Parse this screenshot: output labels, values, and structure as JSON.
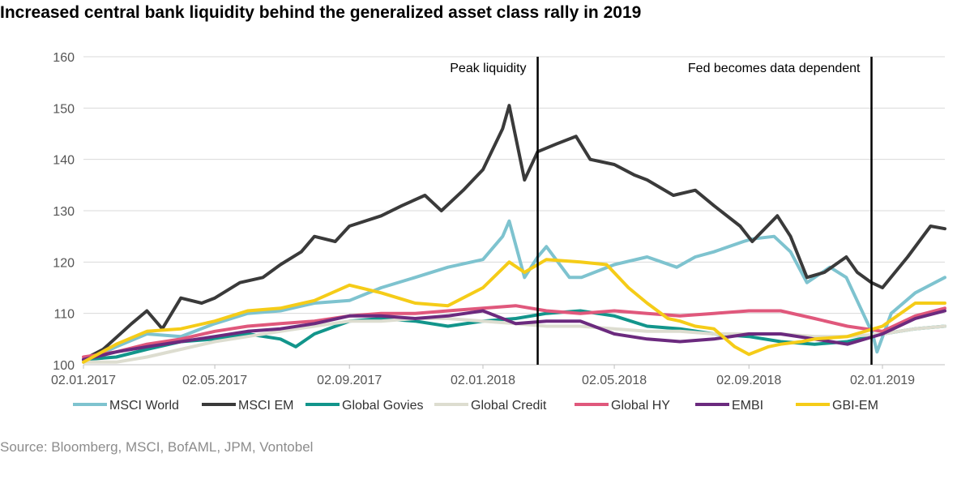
{
  "title": "Increased central bank liquidity behind the generalized asset class rally in 2019",
  "source": "Source: Bloomberg, MSCI, BofAML, JPM, Vontobel",
  "chart_data": {
    "type": "line",
    "x_start": "2017-01-02",
    "x_end": "2019-02-28",
    "x_ticks": [
      "02.01.2017",
      "02.05.2017",
      "02.09.2017",
      "02.01.2018",
      "02.05.2018",
      "02.09.2018",
      "02.01.2019"
    ],
    "x_tick_dates": [
      "2017-01-02",
      "2017-05-02",
      "2017-09-02",
      "2018-01-02",
      "2018-05-02",
      "2018-09-02",
      "2019-01-02"
    ],
    "ylim": [
      100,
      160
    ],
    "y_ticks": [
      "100",
      "110",
      "120",
      "130",
      "140",
      "150",
      "160"
    ],
    "grid": "horizontal",
    "legend_position": "bottom",
    "annotations": [
      {
        "label": "Peak liquidity",
        "date": "2018-02-21"
      },
      {
        "label": "Fed becomes data dependent",
        "date": "2018-12-23"
      }
    ],
    "series": [
      {
        "name": "MSCI World",
        "color": "#7ec3cf",
        "width": 4,
        "points": [
          [
            "2017-01-02",
            100.5
          ],
          [
            "2017-02-01",
            103.5
          ],
          [
            "2017-03-01",
            106
          ],
          [
            "2017-04-01",
            105.5
          ],
          [
            "2017-05-02",
            108
          ],
          [
            "2017-06-01",
            110
          ],
          [
            "2017-07-01",
            110.5
          ],
          [
            "2017-08-01",
            112
          ],
          [
            "2017-09-02",
            112.5
          ],
          [
            "2017-10-01",
            115
          ],
          [
            "2017-11-01",
            117
          ],
          [
            "2017-12-01",
            119
          ],
          [
            "2018-01-02",
            120.5
          ],
          [
            "2018-01-20",
            125
          ],
          [
            "2018-01-26",
            128
          ],
          [
            "2018-02-09",
            117
          ],
          [
            "2018-02-21",
            121
          ],
          [
            "2018-03-01",
            123
          ],
          [
            "2018-03-22",
            117
          ],
          [
            "2018-04-02",
            117
          ],
          [
            "2018-05-02",
            119.5
          ],
          [
            "2018-06-01",
            121
          ],
          [
            "2018-06-28",
            119
          ],
          [
            "2018-07-15",
            121
          ],
          [
            "2018-08-01",
            122
          ],
          [
            "2018-08-28",
            124
          ],
          [
            "2018-09-05",
            124.5
          ],
          [
            "2018-09-25",
            125
          ],
          [
            "2018-10-10",
            122
          ],
          [
            "2018-10-25",
            116
          ],
          [
            "2018-11-15",
            119
          ],
          [
            "2018-11-30",
            117
          ],
          [
            "2018-12-24",
            106
          ],
          [
            "2018-12-28",
            102.5
          ],
          [
            "2019-01-10",
            110
          ],
          [
            "2019-02-01",
            114
          ],
          [
            "2019-02-28",
            117
          ]
        ]
      },
      {
        "name": "MSCI EM",
        "color": "#3a3a3a",
        "width": 4,
        "points": [
          [
            "2017-01-02",
            101
          ],
          [
            "2017-01-20",
            103
          ],
          [
            "2017-02-15",
            108
          ],
          [
            "2017-03-01",
            110.5
          ],
          [
            "2017-03-15",
            107
          ],
          [
            "2017-04-01",
            113
          ],
          [
            "2017-04-20",
            112
          ],
          [
            "2017-05-02",
            113
          ],
          [
            "2017-05-25",
            116
          ],
          [
            "2017-06-15",
            117
          ],
          [
            "2017-07-01",
            119.5
          ],
          [
            "2017-07-20",
            122
          ],
          [
            "2017-08-01",
            125
          ],
          [
            "2017-08-20",
            124
          ],
          [
            "2017-09-02",
            127
          ],
          [
            "2017-10-01",
            129
          ],
          [
            "2017-10-20",
            131
          ],
          [
            "2017-11-10",
            133
          ],
          [
            "2017-11-25",
            130
          ],
          [
            "2017-12-15",
            134
          ],
          [
            "2018-01-02",
            138
          ],
          [
            "2018-01-20",
            146
          ],
          [
            "2018-01-26",
            150.5
          ],
          [
            "2018-02-09",
            136
          ],
          [
            "2018-02-21",
            141.5
          ],
          [
            "2018-03-10",
            143
          ],
          [
            "2018-03-28",
            144.5
          ],
          [
            "2018-04-10",
            140
          ],
          [
            "2018-05-02",
            139
          ],
          [
            "2018-05-20",
            137
          ],
          [
            "2018-06-01",
            136
          ],
          [
            "2018-06-25",
            133
          ],
          [
            "2018-07-15",
            134
          ],
          [
            "2018-08-01",
            131
          ],
          [
            "2018-08-25",
            127
          ],
          [
            "2018-09-05",
            124
          ],
          [
            "2018-09-28",
            129
          ],
          [
            "2018-10-10",
            125
          ],
          [
            "2018-10-25",
            117
          ],
          [
            "2018-11-10",
            118
          ],
          [
            "2018-11-30",
            121
          ],
          [
            "2018-12-10",
            118
          ],
          [
            "2018-12-23",
            116
          ],
          [
            "2019-01-02",
            115
          ],
          [
            "2019-01-25",
            121
          ],
          [
            "2019-02-15",
            127
          ],
          [
            "2019-02-28",
            126.5
          ]
        ]
      },
      {
        "name": "Global Govies",
        "color": "#12958b",
        "width": 4,
        "points": [
          [
            "2017-01-02",
            101
          ],
          [
            "2017-02-01",
            101.5
          ],
          [
            "2017-03-01",
            103
          ],
          [
            "2017-04-01",
            104.5
          ],
          [
            "2017-05-02",
            105
          ],
          [
            "2017-06-01",
            106
          ],
          [
            "2017-07-01",
            105
          ],
          [
            "2017-07-15",
            103.5
          ],
          [
            "2017-08-01",
            106
          ],
          [
            "2017-09-02",
            108.5
          ],
          [
            "2017-10-01",
            109
          ],
          [
            "2017-11-01",
            108.5
          ],
          [
            "2017-12-01",
            107.5
          ],
          [
            "2018-01-02",
            108.5
          ],
          [
            "2018-02-01",
            109
          ],
          [
            "2018-03-01",
            110
          ],
          [
            "2018-04-01",
            110.5
          ],
          [
            "2018-05-02",
            109.5
          ],
          [
            "2018-06-01",
            107.5
          ],
          [
            "2018-07-01",
            107
          ],
          [
            "2018-08-01",
            106
          ],
          [
            "2018-09-02",
            105.5
          ],
          [
            "2018-10-01",
            104.5
          ],
          [
            "2018-11-01",
            104
          ],
          [
            "2018-12-01",
            104.5
          ],
          [
            "2019-01-02",
            106
          ],
          [
            "2019-02-01",
            107
          ],
          [
            "2019-02-28",
            107.5
          ]
        ]
      },
      {
        "name": "Global Credit",
        "color": "#ddddd0",
        "width": 4,
        "points": [
          [
            "2017-01-02",
            100.5
          ],
          [
            "2017-02-01",
            100.5
          ],
          [
            "2017-03-01",
            101.5
          ],
          [
            "2017-04-01",
            103
          ],
          [
            "2017-05-02",
            104.5
          ],
          [
            "2017-06-01",
            105.5
          ],
          [
            "2017-07-01",
            106.5
          ],
          [
            "2017-08-01",
            107.5
          ],
          [
            "2017-09-02",
            108.5
          ],
          [
            "2017-10-01",
            108.5
          ],
          [
            "2017-11-01",
            109
          ],
          [
            "2017-12-01",
            109
          ],
          [
            "2018-01-02",
            108.5
          ],
          [
            "2018-02-01",
            108
          ],
          [
            "2018-03-01",
            107.5
          ],
          [
            "2018-04-01",
            107.5
          ],
          [
            "2018-05-02",
            107
          ],
          [
            "2018-06-01",
            106.5
          ],
          [
            "2018-07-01",
            106.5
          ],
          [
            "2018-08-01",
            106
          ],
          [
            "2018-09-02",
            106
          ],
          [
            "2018-10-01",
            106
          ],
          [
            "2018-11-01",
            105.5
          ],
          [
            "2018-12-01",
            105.5
          ],
          [
            "2019-01-02",
            106
          ],
          [
            "2019-02-01",
            107
          ],
          [
            "2019-02-28",
            107.5
          ]
        ]
      },
      {
        "name": "Global HY",
        "color": "#e0587c",
        "width": 4,
        "points": [
          [
            "2017-01-02",
            101.5
          ],
          [
            "2017-02-01",
            102.5
          ],
          [
            "2017-03-01",
            104
          ],
          [
            "2017-04-01",
            105
          ],
          [
            "2017-05-02",
            106.5
          ],
          [
            "2017-06-01",
            107.5
          ],
          [
            "2017-07-01",
            108
          ],
          [
            "2017-08-01",
            108.5
          ],
          [
            "2017-09-02",
            109.5
          ],
          [
            "2017-10-01",
            110
          ],
          [
            "2017-11-01",
            110
          ],
          [
            "2017-12-01",
            110.5
          ],
          [
            "2018-01-02",
            111
          ],
          [
            "2018-02-01",
            111.5
          ],
          [
            "2018-03-01",
            110.5
          ],
          [
            "2018-04-01",
            110
          ],
          [
            "2018-05-02",
            110.5
          ],
          [
            "2018-06-01",
            110
          ],
          [
            "2018-07-01",
            109.5
          ],
          [
            "2018-08-01",
            110
          ],
          [
            "2018-09-02",
            110.5
          ],
          [
            "2018-10-01",
            110.5
          ],
          [
            "2018-11-01",
            109
          ],
          [
            "2018-12-01",
            107.5
          ],
          [
            "2019-01-02",
            106.5
          ],
          [
            "2019-02-01",
            109.5
          ],
          [
            "2019-02-28",
            111
          ]
        ]
      },
      {
        "name": "EMBI",
        "color": "#6b2a7e",
        "width": 4,
        "points": [
          [
            "2017-01-02",
            101
          ],
          [
            "2017-02-01",
            102.5
          ],
          [
            "2017-03-01",
            103.5
          ],
          [
            "2017-04-01",
            104.5
          ],
          [
            "2017-05-02",
            105.5
          ],
          [
            "2017-06-01",
            106.5
          ],
          [
            "2017-07-01",
            107
          ],
          [
            "2017-08-01",
            108
          ],
          [
            "2017-09-02",
            109.5
          ],
          [
            "2017-10-01",
            109.5
          ],
          [
            "2017-11-01",
            109
          ],
          [
            "2017-12-01",
            109.5
          ],
          [
            "2018-01-02",
            110.5
          ],
          [
            "2018-02-01",
            108
          ],
          [
            "2018-03-01",
            108.5
          ],
          [
            "2018-04-01",
            108.5
          ],
          [
            "2018-05-02",
            106
          ],
          [
            "2018-06-01",
            105
          ],
          [
            "2018-07-01",
            104.5
          ],
          [
            "2018-08-01",
            105
          ],
          [
            "2018-09-02",
            106
          ],
          [
            "2018-10-01",
            106
          ],
          [
            "2018-11-01",
            105
          ],
          [
            "2018-12-01",
            104
          ],
          [
            "2019-01-02",
            106
          ],
          [
            "2019-02-01",
            109
          ],
          [
            "2019-02-28",
            110.5
          ]
        ]
      },
      {
        "name": "GBI-EM",
        "color": "#f5cc18",
        "width": 4,
        "points": [
          [
            "2017-01-02",
            100.5
          ],
          [
            "2017-02-01",
            104
          ],
          [
            "2017-03-01",
            106.5
          ],
          [
            "2017-04-01",
            107
          ],
          [
            "2017-05-02",
            108.5
          ],
          [
            "2017-06-01",
            110.5
          ],
          [
            "2017-07-01",
            111
          ],
          [
            "2017-08-01",
            112.5
          ],
          [
            "2017-09-02",
            115.5
          ],
          [
            "2017-10-01",
            114
          ],
          [
            "2017-11-01",
            112
          ],
          [
            "2017-12-01",
            111.5
          ],
          [
            "2018-01-02",
            115
          ],
          [
            "2018-01-26",
            120
          ],
          [
            "2018-02-09",
            118
          ],
          [
            "2018-03-01",
            120.5
          ],
          [
            "2018-04-01",
            120
          ],
          [
            "2018-04-25",
            119.5
          ],
          [
            "2018-05-15",
            115
          ],
          [
            "2018-06-01",
            112
          ],
          [
            "2018-06-20",
            109
          ],
          [
            "2018-07-01",
            108.5
          ],
          [
            "2018-07-15",
            107.5
          ],
          [
            "2018-08-01",
            107
          ],
          [
            "2018-08-20",
            103.5
          ],
          [
            "2018-09-02",
            102
          ],
          [
            "2018-09-20",
            103.5
          ],
          [
            "2018-10-01",
            104
          ],
          [
            "2018-10-20",
            104.5
          ],
          [
            "2018-11-01",
            105
          ],
          [
            "2018-12-01",
            105.5
          ],
          [
            "2019-01-02",
            107.5
          ],
          [
            "2019-02-01",
            112
          ],
          [
            "2019-02-28",
            112
          ]
        ]
      }
    ]
  }
}
